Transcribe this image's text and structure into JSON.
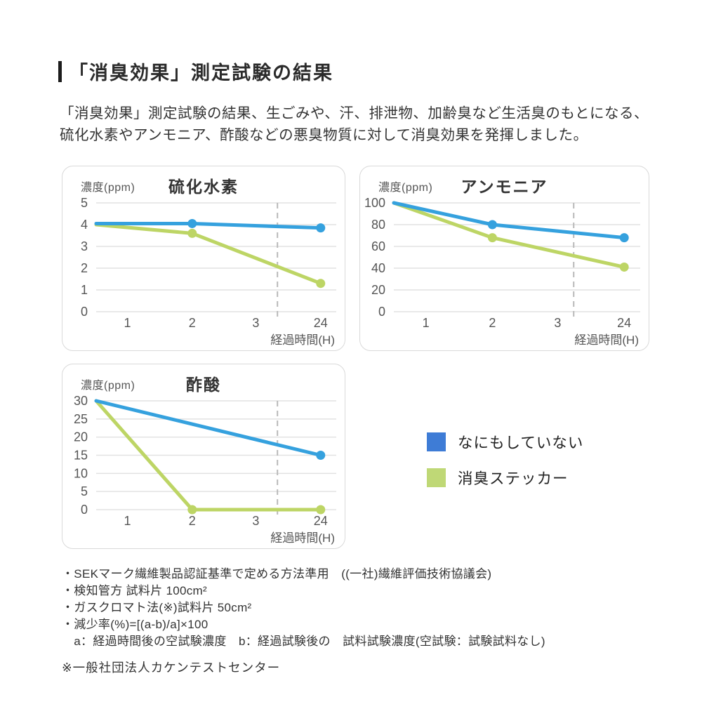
{
  "header": {
    "title": "「消臭効果」測定試験の結果"
  },
  "intro": {
    "line1": "「消臭効果」測定試験の結果、生ごみや、汗、排泄物、加齢臭など生活臭のもとになる、",
    "line2": "硫化水素やアンモニア、酢酸などの悪臭物質に対して消臭効果を発揮しました。"
  },
  "colors": {
    "line_blue": "#35A1DE",
    "line_green": "#BDD565",
    "legend_blue": "#3E7CD6",
    "legend_green": "#BFD876",
    "grid": "#E2E2E2",
    "dashed": "#B9B9B9",
    "tick_text": "#555555"
  },
  "chart_data": [
    {
      "type": "line",
      "title": "硫化水素",
      "ylabel": "濃度(ppm)",
      "xlabel": "経過時間(H)",
      "ylim": [
        0,
        5
      ],
      "yticks": [
        5,
        4,
        3,
        2,
        1,
        0
      ],
      "xticks": [
        {
          "label": "1",
          "f": 0.13
        },
        {
          "label": "2",
          "f": 0.4
        },
        {
          "label": "3",
          "f": 0.665
        },
        {
          "label": "24",
          "f": 0.935
        }
      ],
      "dashed_f": 0.755,
      "series": [
        {
          "name": "なにもしていない",
          "color": "#35A1DE",
          "points": [
            {
              "time": "0H",
              "f": 0,
              "v": 4.05
            },
            {
              "time": "2H",
              "f": 0.4,
              "v": 4.05,
              "dot": true
            },
            {
              "time": "24H",
              "f": 0.935,
              "v": 3.85,
              "dot": true
            }
          ]
        },
        {
          "name": "消臭ステッカー",
          "color": "#BDD565",
          "points": [
            {
              "time": "0H",
              "f": 0,
              "v": 4.0
            },
            {
              "time": "2H",
              "f": 0.4,
              "v": 3.6,
              "dot": true
            },
            {
              "time": "24H",
              "f": 0.935,
              "v": 1.3,
              "dot": true
            }
          ]
        }
      ]
    },
    {
      "type": "line",
      "title": "アンモニア",
      "ylabel": "濃度(ppm)",
      "xlabel": "経過時間(H)",
      "ylim": [
        0,
        100
      ],
      "yticks": [
        100,
        80,
        60,
        40,
        20,
        0
      ],
      "xticks": [
        {
          "label": "1",
          "f": 0.13
        },
        {
          "label": "2",
          "f": 0.4
        },
        {
          "label": "3",
          "f": 0.665
        },
        {
          "label": "24",
          "f": 0.935
        }
      ],
      "dashed_f": 0.73,
      "series": [
        {
          "name": "なにもしていない",
          "color": "#35A1DE",
          "points": [
            {
              "time": "0H",
              "f": 0,
              "v": 100
            },
            {
              "time": "2H",
              "f": 0.4,
              "v": 80,
              "dot": true
            },
            {
              "time": "24H",
              "f": 0.935,
              "v": 68,
              "dot": true
            }
          ]
        },
        {
          "name": "消臭ステッカー",
          "color": "#BDD565",
          "points": [
            {
              "time": "0H",
              "f": 0,
              "v": 100
            },
            {
              "time": "2H",
              "f": 0.4,
              "v": 68,
              "dot": true
            },
            {
              "time": "24H",
              "f": 0.935,
              "v": 41,
              "dot": true
            }
          ]
        }
      ]
    },
    {
      "type": "line",
      "title": "酢酸",
      "ylabel": "濃度(ppm)",
      "xlabel": "経過時間(H)",
      "ylim": [
        0,
        30
      ],
      "yticks": [
        30,
        25,
        20,
        15,
        10,
        5,
        0
      ],
      "xticks": [
        {
          "label": "1",
          "f": 0.13
        },
        {
          "label": "2",
          "f": 0.4
        },
        {
          "label": "3",
          "f": 0.665
        },
        {
          "label": "24",
          "f": 0.935
        }
      ],
      "dashed_f": 0.755,
      "series": [
        {
          "name": "なにもしていない",
          "color": "#35A1DE",
          "points": [
            {
              "time": "0H",
              "f": 0,
              "v": 30
            },
            {
              "time": "24H",
              "f": 0.935,
              "v": 15,
              "dot": true
            }
          ]
        },
        {
          "name": "消臭ステッカー",
          "color": "#BDD565",
          "points": [
            {
              "time": "0H",
              "f": 0,
              "v": 30
            },
            {
              "time": "2H",
              "f": 0.4,
              "v": 0,
              "dot": true
            },
            {
              "time": "24H",
              "f": 0.935,
              "v": 0,
              "dot": true
            }
          ]
        }
      ]
    }
  ],
  "legend": {
    "items": [
      {
        "label": "なにもしていない",
        "color": "#3E7CD6"
      },
      {
        "label": "消臭ステッカー",
        "color": "#BFD876"
      }
    ]
  },
  "notes": {
    "lines": [
      "・SEKマーク繊維製品認証基準で定める方法準用　((一社)繊維評価技術協議会)",
      "・検知管方 試料片 100cm²",
      "・ガスクロマト法(※)試料片 50cm²",
      "・減少率(%)=[(a-b)/a]×100",
      "　a：経過時間後の空試験濃度　b：経過試験後の　試料試験濃度(空試験：試験試料なし)"
    ],
    "source": "※一般社団法人カケンテストセンター"
  }
}
